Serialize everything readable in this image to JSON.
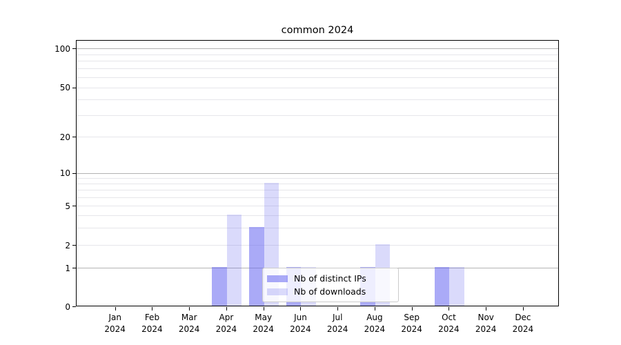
{
  "title": "common 2024",
  "legend": {
    "items": [
      {
        "label": "Nb of distinct IPs",
        "color_key": "ips"
      },
      {
        "label": "Nb of downloads",
        "color_key": "downloads"
      }
    ]
  },
  "colors": {
    "ips": "rgba(100,100,240,0.55)",
    "downloads": "rgba(100,100,240,0.24)",
    "grid_major": "#b3b3b3",
    "grid_minor": "#e6e6ea",
    "axis": "#000000",
    "text": "#000000"
  },
  "chart_data": {
    "type": "bar",
    "title": "common 2024",
    "xlabel": "",
    "ylabel": "",
    "categories": [
      "Jan 2024",
      "Feb 2024",
      "Mar 2024",
      "Apr 2024",
      "May 2024",
      "Jun 2024",
      "Jul 2024",
      "Aug 2024",
      "Sep 2024",
      "Oct 2024",
      "Nov 2024",
      "Dec 2024"
    ],
    "x_months": [
      "Jan",
      "Feb",
      "Mar",
      "Apr",
      "May",
      "Jun",
      "Jul",
      "Aug",
      "Sep",
      "Oct",
      "Nov",
      "Dec"
    ],
    "x_year": "2024",
    "series": [
      {
        "name": "Nb of distinct IPs",
        "color_key": "ips",
        "values": [
          0,
          0,
          0,
          1,
          3,
          1,
          0,
          1,
          0,
          1,
          0,
          0
        ]
      },
      {
        "name": "Nb of downloads",
        "color_key": "downloads",
        "values": [
          0,
          0,
          0,
          4,
          8,
          1,
          0,
          2,
          0,
          1,
          0,
          0
        ]
      }
    ],
    "y_scale": "symlog",
    "y_ticks": [
      0,
      1,
      2,
      5,
      10,
      20,
      50,
      100
    ],
    "y_grid_major": [
      1,
      10,
      100
    ],
    "y_grid_minor": [
      2,
      3,
      4,
      5,
      6,
      7,
      8,
      9,
      20,
      30,
      40,
      50,
      60,
      70,
      80,
      90
    ],
    "ylim": [
      0,
      100
    ],
    "grid": true,
    "legend_position": "lower center"
  }
}
